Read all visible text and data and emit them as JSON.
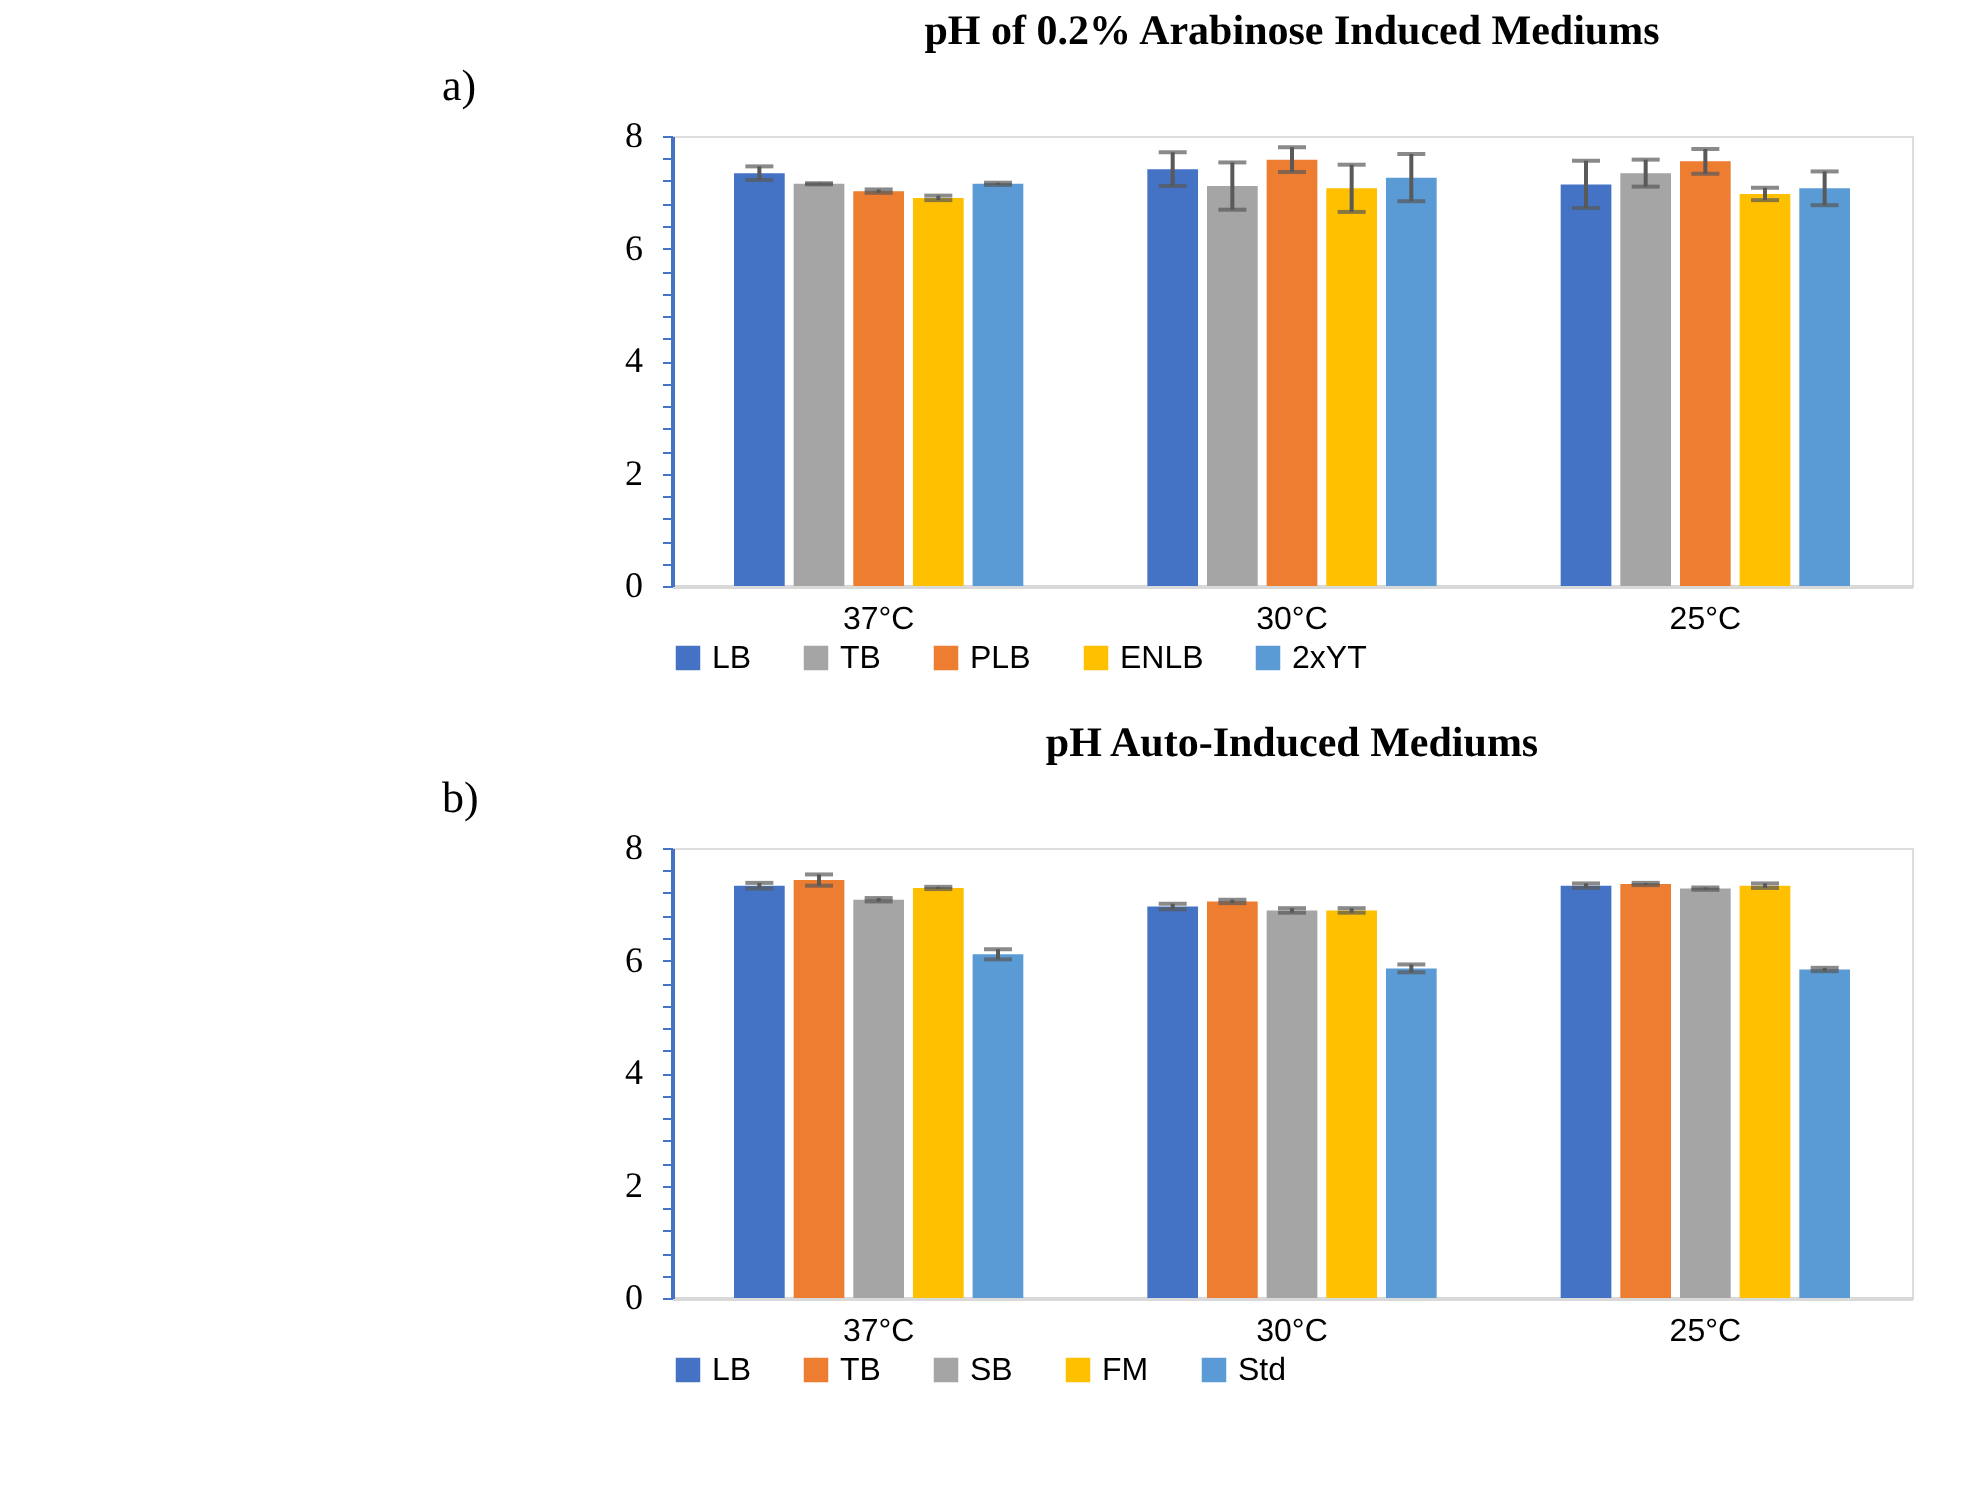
{
  "chart_data": [
    {
      "type": "bar",
      "title": "pH of 0.2% Arabinose Induced Mediums",
      "annotations": [
        "a)"
      ],
      "categories": [
        "37°C",
        "30°C",
        "25°C"
      ],
      "series": [
        {
          "name": "LB",
          "color": "#4472c4",
          "values": [
            7.34,
            7.41,
            7.14
          ],
          "errors": [
            0.12,
            0.3,
            0.42
          ]
        },
        {
          "name": "TB",
          "color": "#a5a5a5",
          "values": [
            7.15,
            7.11,
            7.34
          ],
          "errors": [
            0.01,
            0.42,
            0.24
          ]
        },
        {
          "name": "PLB",
          "color": "#ed7d31",
          "values": [
            7.02,
            7.58,
            7.55
          ],
          "errors": [
            0.03,
            0.22,
            0.22
          ]
        },
        {
          "name": "ENLB",
          "color": "#ffc000",
          "values": [
            6.9,
            7.07,
            6.97
          ],
          "errors": [
            0.04,
            0.42,
            0.11
          ]
        },
        {
          "name": "2xYT",
          "color": "#5b9bd5",
          "values": [
            7.15,
            7.26,
            7.07
          ],
          "errors": [
            0.02,
            0.42,
            0.3
          ]
        }
      ],
      "ylim": [
        0,
        8
      ],
      "yticks": [
        0,
        {
          "value": 0.4,
          "label": null
        },
        {
          "value": 0.8,
          "label": null
        },
        {
          "value": 1.2,
          "label": null
        },
        {
          "value": 1.6,
          "label": null
        },
        2,
        {
          "value": 2.4,
          "label": null
        },
        {
          "value": 2.8,
          "label": null
        },
        {
          "value": 3.2,
          "label": null
        },
        {
          "value": 3.6,
          "label": null
        },
        4,
        {
          "value": 4.4,
          "label": null
        },
        {
          "value": 4.8,
          "label": null
        },
        {
          "value": 5.2,
          "label": null
        },
        {
          "value": 5.6,
          "label": null
        },
        6,
        {
          "value": 6.4,
          "label": null
        },
        {
          "value": 6.8,
          "label": null
        },
        {
          "value": 7.2,
          "label": null
        },
        {
          "value": 7.6,
          "label": null
        },
        8
      ],
      "grid": false,
      "legend": "bottom"
    },
    {
      "type": "bar",
      "title": "pH Auto-Induced Mediums",
      "annotations": [
        "b)"
      ],
      "categories": [
        "37°C",
        "30°C",
        "25°C"
      ],
      "series": [
        {
          "name": "LB",
          "color": "#4472c4",
          "values": [
            7.33,
            6.96,
            7.33
          ],
          "errors": [
            0.05,
            0.05,
            0.04
          ]
        },
        {
          "name": "TB",
          "color": "#ed7d31",
          "values": [
            7.43,
            7.05,
            7.36
          ],
          "errors": [
            0.1,
            0.03,
            0.02
          ]
        },
        {
          "name": "SB",
          "color": "#a5a5a5",
          "values": [
            7.08,
            6.89,
            7.28
          ],
          "errors": [
            0.03,
            0.04,
            0.02
          ]
        },
        {
          "name": "FM",
          "color": "#ffc000",
          "values": [
            7.29,
            6.89,
            7.33
          ],
          "errors": [
            0.02,
            0.04,
            0.04
          ]
        },
        {
          "name": "Std",
          "color": "#5b9bd5",
          "values": [
            6.11,
            5.86,
            5.84
          ],
          "errors": [
            0.09,
            0.07,
            0.03
          ]
        }
      ],
      "ylim": [
        0,
        8
      ],
      "yticks": [
        0,
        {
          "value": 0.4,
          "label": null
        },
        {
          "value": 0.8,
          "label": null
        },
        {
          "value": 1.2,
          "label": null
        },
        {
          "value": 1.6,
          "label": null
        },
        2,
        {
          "value": 2.4,
          "label": null
        },
        {
          "value": 2.8,
          "label": null
        },
        {
          "value": 3.2,
          "label": null
        },
        {
          "value": 3.6,
          "label": null
        },
        4,
        {
          "value": 4.4,
          "label": null
        },
        {
          "value": 4.8,
          "label": null
        },
        {
          "value": 5.2,
          "label": null
        },
        {
          "value": 5.6,
          "label": null
        },
        6,
        {
          "value": 6.4,
          "label": null
        },
        {
          "value": 6.8,
          "label": null
        },
        {
          "value": 7.2,
          "label": null
        },
        {
          "value": 7.6,
          "label": null
        },
        8
      ],
      "grid": false,
      "legend": "bottom"
    }
  ]
}
